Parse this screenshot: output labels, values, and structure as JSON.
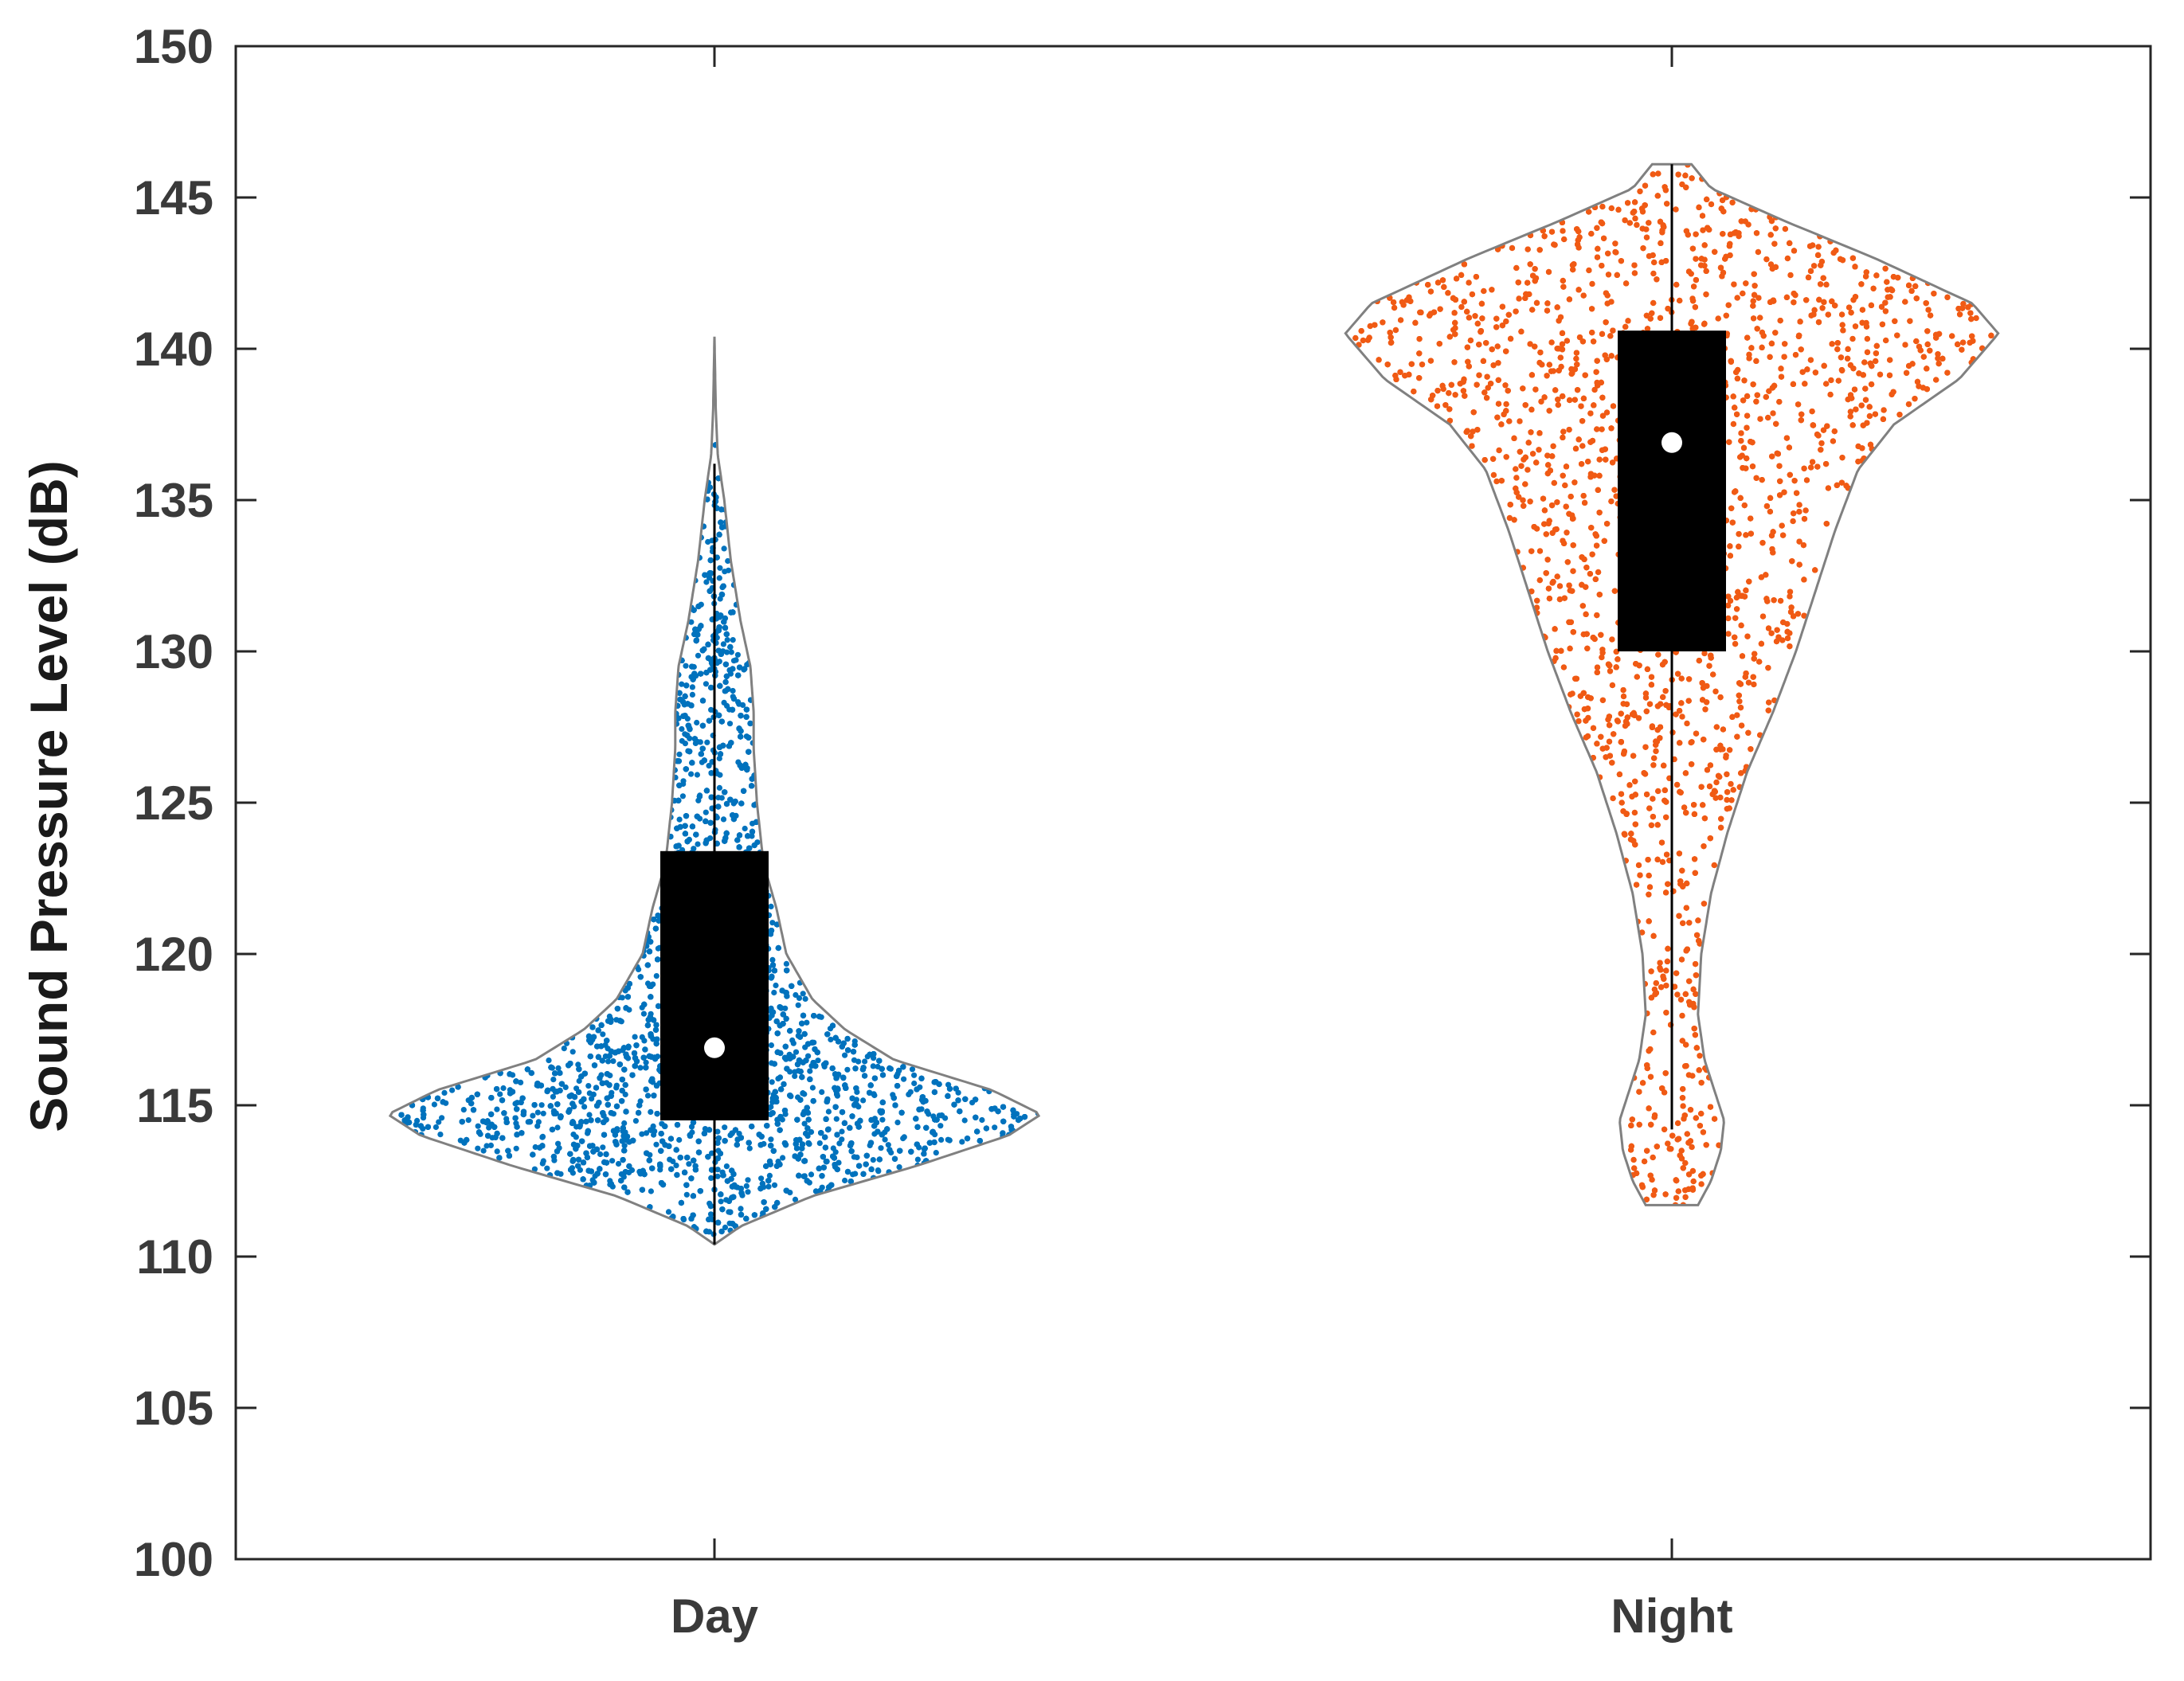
{
  "chart_data": {
    "type": "violin",
    "title": "",
    "xlabel": "",
    "ylabel": "Sound Pressure Level (dB)",
    "ylim": [
      100,
      150
    ],
    "yticks": [
      100,
      105,
      110,
      115,
      120,
      125,
      130,
      135,
      140,
      145,
      150
    ],
    "categories": [
      "Day",
      "Night"
    ],
    "grid": false,
    "legend": "none",
    "series": [
      {
        "category": "Day",
        "color": "#0072BD",
        "min": 110.4,
        "max": 140.4,
        "whisker_low": 110.4,
        "whisker_high": 136.2,
        "q1": 114.5,
        "median": 116.9,
        "q3": 123.4,
        "density": [
          [
            110.4,
            0.0
          ],
          [
            111.0,
            0.08
          ],
          [
            112.0,
            0.3
          ],
          [
            113.0,
            0.62
          ],
          [
            114.0,
            0.9
          ],
          [
            114.7,
            1.0
          ],
          [
            115.5,
            0.85
          ],
          [
            116.5,
            0.55
          ],
          [
            117.5,
            0.4
          ],
          [
            118.5,
            0.3
          ],
          [
            120.0,
            0.22
          ],
          [
            121.5,
            0.19
          ],
          [
            123.0,
            0.15
          ],
          [
            125.0,
            0.13
          ],
          [
            126.8,
            0.12
          ],
          [
            128.0,
            0.12
          ],
          [
            129.5,
            0.11
          ],
          [
            131.0,
            0.08
          ],
          [
            133.0,
            0.05
          ],
          [
            135.0,
            0.03
          ],
          [
            136.5,
            0.01
          ],
          [
            138.0,
            0.004
          ],
          [
            140.4,
            0.0
          ]
        ]
      },
      {
        "category": "Night",
        "color": "#F05A14",
        "min": 111.7,
        "max": 146.1,
        "whisker_low": 114.2,
        "whisker_high": 146.1,
        "q1": 130.0,
        "median": 136.9,
        "q3": 140.6,
        "density": [
          [
            111.7,
            0.08
          ],
          [
            112.5,
            0.12
          ],
          [
            113.5,
            0.15
          ],
          [
            114.5,
            0.16
          ],
          [
            115.5,
            0.13
          ],
          [
            116.5,
            0.1
          ],
          [
            118.0,
            0.08
          ],
          [
            120.0,
            0.09
          ],
          [
            122.0,
            0.12
          ],
          [
            124.0,
            0.17
          ],
          [
            126.0,
            0.23
          ],
          [
            128.0,
            0.31
          ],
          [
            130.0,
            0.38
          ],
          [
            132.0,
            0.44
          ],
          [
            134.0,
            0.5
          ],
          [
            136.0,
            0.57
          ],
          [
            137.5,
            0.68
          ],
          [
            139.0,
            0.88
          ],
          [
            140.5,
            1.0
          ],
          [
            141.5,
            0.92
          ],
          [
            143.0,
            0.62
          ],
          [
            144.2,
            0.35
          ],
          [
            145.3,
            0.12
          ],
          [
            146.1,
            0.06
          ]
        ]
      }
    ]
  }
}
